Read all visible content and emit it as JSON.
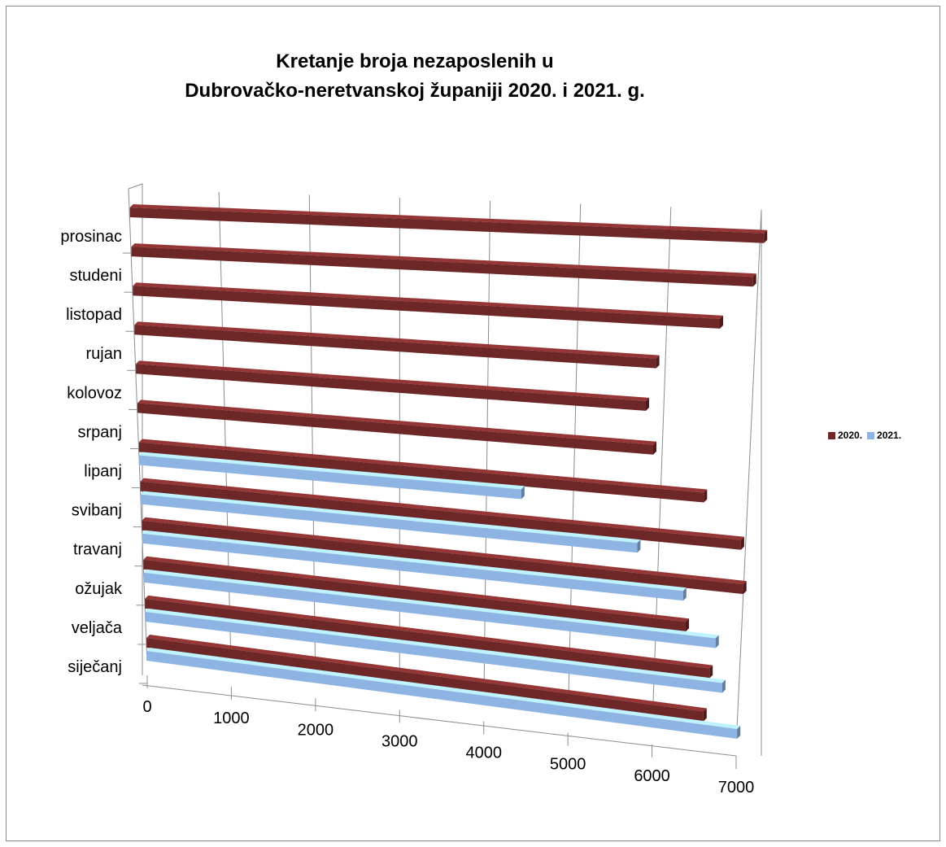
{
  "chart_data": {
    "type": "bar",
    "orientation": "horizontal",
    "style": "3d",
    "title_lines": [
      "Kretanje broja nezaposlenih u",
      "Dubrovačko-neretvanskoj županiji  2020. i 2021. g."
    ],
    "categories": [
      "siječanj",
      "veljača",
      "ožujak",
      "travanj",
      "svibanj",
      "lipanj",
      "srpanj",
      "kolovoz",
      "rujan",
      "listopad",
      "studeni",
      "prosinac"
    ],
    "series": [
      {
        "name": "2020.",
        "color": "#6e2727",
        "values": [
          6600,
          6650,
          6350,
          7000,
          6950,
          6500,
          5900,
          5800,
          5900,
          6600,
          6950,
          7050
        ]
      },
      {
        "name": "2021.",
        "color": "#8db4e2",
        "values": [
          7000,
          6800,
          6700,
          6300,
          5750,
          4400,
          null,
          null,
          null,
          null,
          null,
          null
        ]
      }
    ],
    "x_ticks": [
      "0",
      "1000",
      "2000",
      "3000",
      "4000",
      "5000",
      "6000",
      "7000"
    ],
    "xlim": [
      0,
      7000
    ],
    "grid": true,
    "legend_position": "right"
  }
}
